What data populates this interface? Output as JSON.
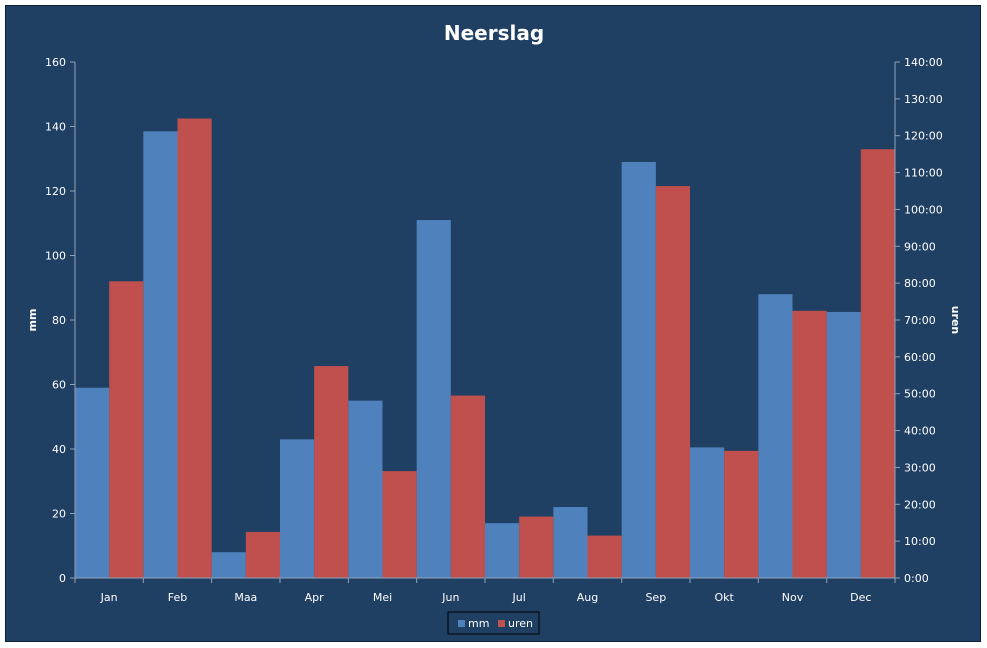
{
  "chart_data": {
    "type": "bar",
    "title": "Neerslag",
    "categories": [
      "Jan",
      "Feb",
      "Maa",
      "Apr",
      "Mei",
      "Jun",
      "Jul",
      "Aug",
      "Sep",
      "Okt",
      "Nov",
      "Dec"
    ],
    "series": [
      {
        "name": "mm",
        "axis": "left",
        "color": "#4f81bd",
        "values": [
          59,
          138.5,
          8,
          43,
          55,
          111,
          17,
          22,
          129,
          40.5,
          88,
          82.5
        ]
      },
      {
        "name": "uren",
        "axis": "right",
        "color": "#c0504d",
        "values": [
          "80:30",
          "124:40",
          "12:30",
          "57:30",
          "29:00",
          "49:30",
          "16:40",
          "11:30",
          "106:20",
          "34:30",
          "72:30",
          "116:20"
        ]
      }
    ],
    "y_left": {
      "label": "mm",
      "range": [
        0,
        160
      ],
      "ticks": [
        "0",
        "20",
        "40",
        "60",
        "80",
        "100",
        "120",
        "140",
        "160"
      ]
    },
    "y_right": {
      "label": "uren",
      "range": [
        "0:00",
        "140:00"
      ],
      "ticks": [
        "0:00",
        "10:00",
        "20:00",
        "30:00",
        "40:00",
        "50:00",
        "60:00",
        "70:00",
        "80:00",
        "90:00",
        "100:00",
        "110:00",
        "120:00",
        "130:00",
        "140:00"
      ]
    },
    "legend": {
      "position": "bottom",
      "entries": [
        "mm",
        "uren"
      ]
    },
    "grid": false
  }
}
